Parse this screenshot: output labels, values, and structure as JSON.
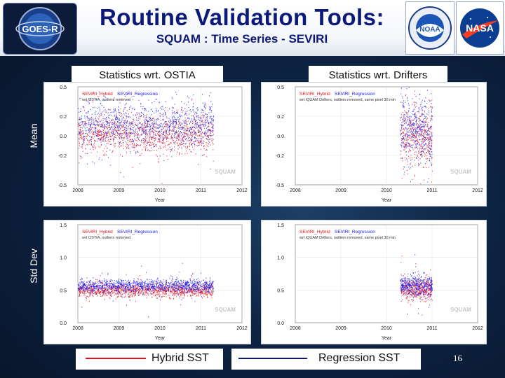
{
  "header": {
    "title": "Routine Validation Tools:",
    "subtitle": "SQUAM : Time Series - SEVIRI"
  },
  "logos": {
    "goes": "GOES-R",
    "noaa": "NOAA",
    "nasa": "NASA"
  },
  "columns": {
    "left_label": "Statistics wrt.  OSTIA",
    "right_label": "Statistics wrt. Drifters"
  },
  "row_labels": {
    "mean": "Mean",
    "std": "Std Dev"
  },
  "legend": {
    "hybrid": "Hybrid SST",
    "regression": "Regression SST"
  },
  "page_number": "16",
  "colors": {
    "hybrid": "#e8121a",
    "regression": "#1b1bf0",
    "title": "#0b1a7a"
  },
  "chart_data": [
    {
      "type": "scatter",
      "legend_labels": [
        "SEVIRI_Hybrid",
        "SEVIRI_Regression"
      ],
      "note": "wrt OSTIA, outliers removed",
      "xlabel": "Year",
      "xticks": [
        "2008",
        "2009",
        "2010",
        "2011",
        "2012"
      ],
      "xlim": [
        2008,
        2012
      ],
      "yticks": [
        "0.5",
        "0.2",
        "0.0",
        "-0.2",
        "-0.5"
      ],
      "ylim": [
        -0.5,
        0.5
      ],
      "watermark": "SQUAM",
      "series": [
        {
          "name": "SEVIRI_Hybrid",
          "x_range": [
            2008.0,
            2011.3
          ],
          "center": 0.02,
          "spread": 0.1
        },
        {
          "name": "SEVIRI_Regression",
          "x_range": [
            2008.0,
            2011.3
          ],
          "center": 0.12,
          "spread": 0.11
        }
      ]
    },
    {
      "type": "scatter",
      "legend_labels": [
        "SEVIRI_Hybrid",
        "SEVIRI_Regression"
      ],
      "note": "wrt iQUAM Drifters, outliers removed, same pixel 30 min",
      "xlabel": "Year",
      "xticks": [
        "2008",
        "2009",
        "2010",
        "2011",
        "2012"
      ],
      "xlim": [
        2008,
        2012
      ],
      "yticks": [
        "0.5",
        "0.2",
        "0.0",
        "-0.2",
        "-0.5"
      ],
      "ylim": [
        -0.5,
        0.5
      ],
      "watermark": "SQUAM",
      "series": [
        {
          "name": "SEVIRI_Hybrid",
          "x_range": [
            2010.3,
            2011.0
          ],
          "center": 0.0,
          "spread": 0.16
        },
        {
          "name": "SEVIRI_Regression",
          "x_range": [
            2010.3,
            2011.0
          ],
          "center": 0.07,
          "spread": 0.16
        }
      ]
    },
    {
      "type": "scatter",
      "legend_labels": [
        "SEVIRI_Hybrid",
        "SEVIRI_Regression"
      ],
      "note": "wrt OSTIA, outliers removed",
      "xlabel": "Year",
      "xticks": [
        "2008",
        "2009",
        "2010",
        "2011",
        "2012"
      ],
      "xlim": [
        2008,
        2012
      ],
      "yticks": [
        "1.5",
        "1.0",
        "0.5",
        "0.0"
      ],
      "ylim": [
        0.0,
        1.5
      ],
      "watermark": "SQUAM",
      "series": [
        {
          "name": "SEVIRI_Hybrid",
          "x_range": [
            2008.0,
            2011.3
          ],
          "center": 0.5,
          "spread": 0.05
        },
        {
          "name": "SEVIRI_Regression",
          "x_range": [
            2008.0,
            2011.3
          ],
          "center": 0.57,
          "spread": 0.05
        }
      ]
    },
    {
      "type": "scatter",
      "legend_labels": [
        "SEVIRI_Hybrid",
        "SEVIRI_Regression"
      ],
      "note": "wrt iQUAM Drifters, outliers removed, same pixel 30 min",
      "xlabel": "Year",
      "xticks": [
        "2008",
        "2009",
        "2010",
        "2011",
        "2012"
      ],
      "xlim": [
        2008,
        2012
      ],
      "yticks": [
        "1.5",
        "1.0",
        "0.5",
        "0.0"
      ],
      "ylim": [
        0.0,
        1.5
      ],
      "watermark": "SQUAM",
      "series": [
        {
          "name": "SEVIRI_Hybrid",
          "x_range": [
            2010.3,
            2011.0
          ],
          "center": 0.52,
          "spread": 0.08
        },
        {
          "name": "SEVIRI_Regression",
          "x_range": [
            2010.3,
            2011.0
          ],
          "center": 0.58,
          "spread": 0.08
        }
      ]
    }
  ]
}
